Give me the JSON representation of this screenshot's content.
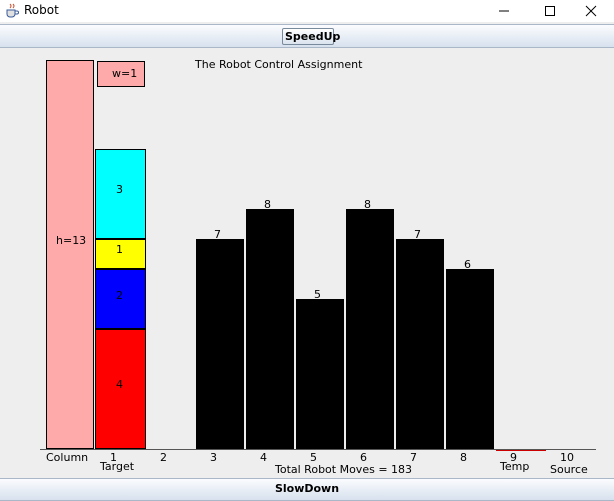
{
  "window": {
    "title": "Robot",
    "icon": "java-cup-icon",
    "controls": [
      "minimize-icon",
      "maximize-icon",
      "close-icon"
    ]
  },
  "buttons": {
    "speedup": "SpeedUp",
    "slowdown": "SlowDown"
  },
  "canvas": {
    "heading": "The Robot Control Assignment",
    "column_label": "h=13",
    "width_label": "w=1",
    "target_blocks": [
      "3",
      "1",
      "2",
      "4"
    ],
    "bar_values": [
      "7",
      "8",
      "5",
      "8",
      "7",
      "6"
    ],
    "slots": [
      "Column",
      "1",
      "2",
      "3",
      "4",
      "5",
      "6",
      "7",
      "8",
      "9",
      "10"
    ],
    "slot_names": {
      "target": "Target",
      "temp": "Temp",
      "source": "Source"
    },
    "status": "Total Robot Moves = 183"
  },
  "colors": {
    "column": "#ffaaaa",
    "block_cyan": "#00ffff",
    "block_yellow": "#ffff00",
    "block_blue": "#0000ff",
    "block_red": "#ff0000",
    "bars": "#000000",
    "temp_line": "#cc0000",
    "button_gradient_top": "#fbfcfe",
    "button_gradient_bottom": "#d7e1ee"
  }
}
